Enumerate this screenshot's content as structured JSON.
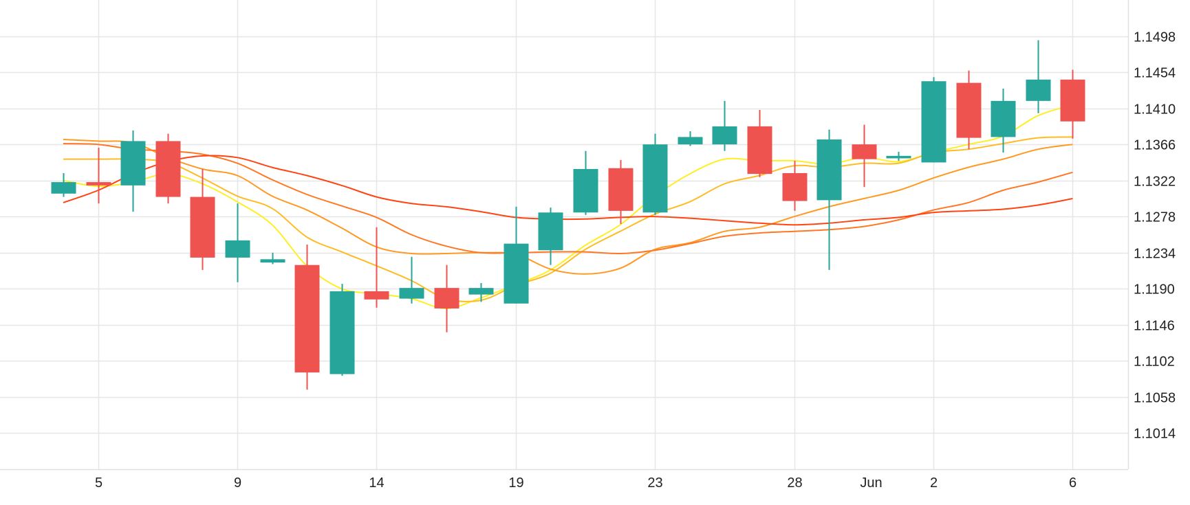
{
  "chart_data": {
    "type": "candlestick",
    "title": "",
    "xlabel": "",
    "ylabel": "",
    "ylim": [
      1.097,
      1.1542
    ],
    "y_ticks": [
      "1.1498",
      "1.1454",
      "1.1410",
      "1.1366",
      "1.1322",
      "1.1278",
      "1.1234",
      "1.1190",
      "1.1146",
      "1.1102",
      "1.1058",
      "1.1014"
    ],
    "x_ticks": [
      {
        "label": "5",
        "index": 1
      },
      {
        "label": "9",
        "index": 5
      },
      {
        "label": "14",
        "index": 9
      },
      {
        "label": "19",
        "index": 13
      },
      {
        "label": "23",
        "index": 17
      },
      {
        "label": "28",
        "index": 21
      },
      {
        "label": "Jun",
        "index": 23.2
      },
      {
        "label": "2",
        "index": 25
      },
      {
        "label": "6",
        "index": 29
      }
    ],
    "candles": [
      {
        "o": 1.1306,
        "h": 1.1331,
        "l": 1.1302,
        "c": 1.132
      },
      {
        "o": 1.132,
        "h": 1.1362,
        "l": 1.1294,
        "c": 1.1316
      },
      {
        "o": 1.1316,
        "h": 1.1383,
        "l": 1.1284,
        "c": 1.137
      },
      {
        "o": 1.137,
        "h": 1.1379,
        "l": 1.1294,
        "c": 1.1302
      },
      {
        "o": 1.1302,
        "h": 1.1336,
        "l": 1.1213,
        "c": 1.1228
      },
      {
        "o": 1.1228,
        "h": 1.1294,
        "l": 1.1198,
        "c": 1.1249
      },
      {
        "o": 1.1222,
        "h": 1.1234,
        "l": 1.122,
        "c": 1.1226
      },
      {
        "o": 1.1219,
        "h": 1.1244,
        "l": 1.1067,
        "c": 1.1088
      },
      {
        "o": 1.1086,
        "h": 1.1196,
        "l": 1.1084,
        "c": 1.1187
      },
      {
        "o": 1.1187,
        "h": 1.1265,
        "l": 1.1167,
        "c": 1.1177
      },
      {
        "o": 1.1178,
        "h": 1.1229,
        "l": 1.1172,
        "c": 1.1191
      },
      {
        "o": 1.1191,
        "h": 1.1219,
        "l": 1.1137,
        "c": 1.1166
      },
      {
        "o": 1.1183,
        "h": 1.1197,
        "l": 1.1174,
        "c": 1.1191
      },
      {
        "o": 1.1172,
        "h": 1.129,
        "l": 1.1172,
        "c": 1.1245
      },
      {
        "o": 1.1237,
        "h": 1.1289,
        "l": 1.1219,
        "c": 1.1283
      },
      {
        "o": 1.1283,
        "h": 1.1358,
        "l": 1.128,
        "c": 1.1336
      },
      {
        "o": 1.1337,
        "h": 1.1347,
        "l": 1.1269,
        "c": 1.1285
      },
      {
        "o": 1.1283,
        "h": 1.1379,
        "l": 1.128,
        "c": 1.1366
      },
      {
        "o": 1.1366,
        "h": 1.1382,
        "l": 1.1364,
        "c": 1.1375
      },
      {
        "o": 1.1366,
        "h": 1.1419,
        "l": 1.1358,
        "c": 1.1388
      },
      {
        "o": 1.1388,
        "h": 1.1408,
        "l": 1.1326,
        "c": 1.133
      },
      {
        "o": 1.1331,
        "h": 1.1346,
        "l": 1.1285,
        "c": 1.1297
      },
      {
        "o": 1.1298,
        "h": 1.1384,
        "l": 1.1213,
        "c": 1.1372
      },
      {
        "o": 1.1366,
        "h": 1.139,
        "l": 1.1314,
        "c": 1.1348
      },
      {
        "o": 1.1349,
        "h": 1.1357,
        "l": 1.1346,
        "c": 1.1352
      },
      {
        "o": 1.1344,
        "h": 1.1448,
        "l": 1.1344,
        "c": 1.1443
      },
      {
        "o": 1.1441,
        "h": 1.1456,
        "l": 1.136,
        "c": 1.1374
      },
      {
        "o": 1.1375,
        "h": 1.1434,
        "l": 1.1356,
        "c": 1.1419
      },
      {
        "o": 1.1419,
        "h": 1.1493,
        "l": 1.1404,
        "c": 1.1445
      },
      {
        "o": 1.1445,
        "h": 1.1457,
        "l": 1.1373,
        "c": 1.1394
      }
    ],
    "moving_averages": [
      {
        "color": "#ffee22",
        "values": [
          1.1322,
          1.1315,
          1.132,
          1.133,
          1.1318,
          1.1296,
          1.1268,
          1.1218,
          1.119,
          1.1184,
          1.1178,
          1.1166,
          1.1179,
          1.1195,
          1.1213,
          1.1243,
          1.1268,
          1.1303,
          1.133,
          1.1348,
          1.1346,
          1.1346,
          1.1342,
          1.135,
          1.1345,
          1.1356,
          1.1366,
          1.1376,
          1.1401,
          1.1414
        ]
      },
      {
        "color": "#ffbb22",
        "values": [
          1.1348,
          1.1348,
          1.1348,
          1.1344,
          1.1325,
          1.1303,
          1.1288,
          1.1253,
          1.1235,
          1.1218,
          1.12,
          1.1178,
          1.1176,
          1.1194,
          1.1209,
          1.1238,
          1.126,
          1.1281,
          1.1296,
          1.1318,
          1.1328,
          1.134,
          1.1338,
          1.1343,
          1.1343,
          1.1356,
          1.136,
          1.1367,
          1.1374,
          1.1375
        ]
      },
      {
        "color": "#ff9922",
        "values": [
          1.1372,
          1.137,
          1.1368,
          1.135,
          1.1336,
          1.1328,
          1.1303,
          1.1286,
          1.1264,
          1.1241,
          1.1233,
          1.1233,
          1.1234,
          1.1232,
          1.1214,
          1.1208,
          1.1215,
          1.1238,
          1.1246,
          1.126,
          1.1265,
          1.1278,
          1.129,
          1.13,
          1.131,
          1.1325,
          1.1338,
          1.1348,
          1.136,
          1.1366
        ]
      },
      {
        "color": "#ff7722",
        "values": [
          1.1367,
          1.1366,
          1.136,
          1.1358,
          1.1354,
          1.1343,
          1.1323,
          1.1305,
          1.1291,
          1.1277,
          1.1256,
          1.1242,
          1.1234,
          1.1234,
          1.1235,
          1.1235,
          1.1233,
          1.1237,
          1.1245,
          1.1254,
          1.1258,
          1.126,
          1.1262,
          1.1266,
          1.1274,
          1.1286,
          1.1295,
          1.131,
          1.132,
          1.1332
        ]
      },
      {
        "color": "#ff4411",
        "values": [
          1.1295,
          1.131,
          1.133,
          1.1345,
          1.1352,
          1.135,
          1.1338,
          1.1328,
          1.1316,
          1.1302,
          1.1294,
          1.129,
          1.1284,
          1.1277,
          1.1275,
          1.1275,
          1.1277,
          1.1278,
          1.1276,
          1.1273,
          1.127,
          1.1268,
          1.127,
          1.1274,
          1.1277,
          1.1283,
          1.1285,
          1.1287,
          1.1292,
          1.13
        ]
      }
    ],
    "up_color": "#26a69a",
    "down_color": "#ef5350",
    "grid": true,
    "legend": "none"
  }
}
